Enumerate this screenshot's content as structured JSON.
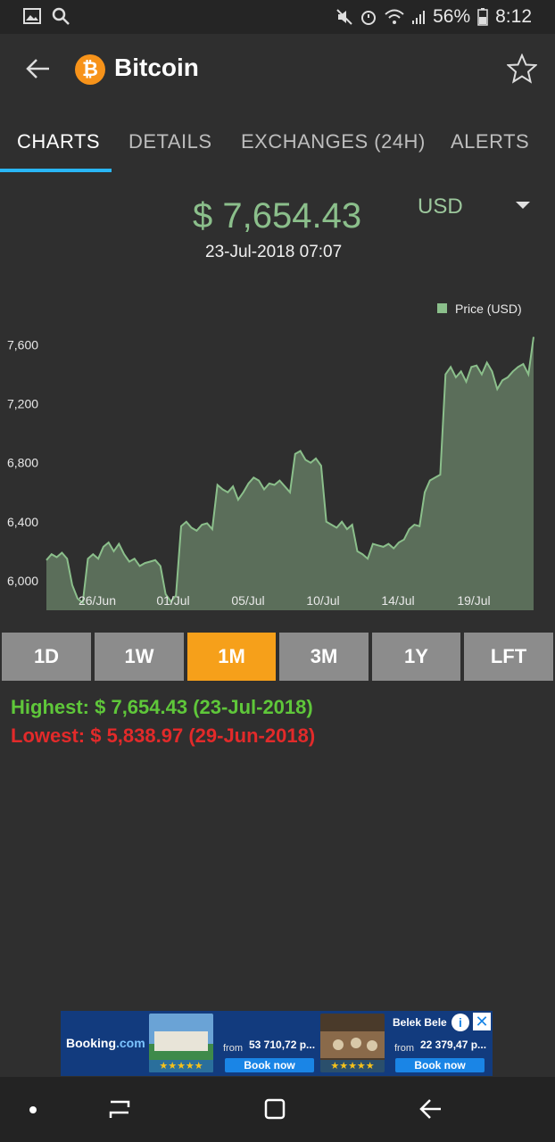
{
  "status_bar": {
    "battery": "56%",
    "time": "8:12"
  },
  "app_bar": {
    "title": "Bitcoin",
    "coin_symbol": "₿"
  },
  "tabs": [
    "CHARTS",
    "DETAILS",
    "EXCHANGES (24H)",
    "ALERTS"
  ],
  "price": {
    "value": "$ 7,654.43",
    "currency": "USD",
    "datetime": "23-Jul-2018 07:07"
  },
  "chart_data": {
    "type": "area",
    "legend": "Price (USD)",
    "legend_position": "top-right",
    "y_ticks": [
      "6,000",
      "6,400",
      "6,800",
      "7,200",
      "7,600"
    ],
    "x_ticks": [
      "26/Jun",
      "01/Jul",
      "05/Jul",
      "10/Jul",
      "14/Jul",
      "19/Jul"
    ],
    "ylim": [
      5800,
      7700
    ],
    "series": [
      {
        "values": [
          6140,
          6180,
          6160,
          6190,
          6150,
          5970,
          5880,
          5850,
          6150,
          6180,
          6150,
          6230,
          6260,
          6200,
          6250,
          6180,
          6130,
          6150,
          6100,
          6120,
          6130,
          6140,
          6100,
          5910,
          5860,
          5900,
          6370,
          6400,
          6360,
          6340,
          6380,
          6390,
          6350,
          6650,
          6620,
          6600,
          6640,
          6550,
          6600,
          6660,
          6700,
          6680,
          6620,
          6660,
          6650,
          6680,
          6640,
          6600,
          6860,
          6880,
          6820,
          6800,
          6830,
          6780,
          6400,
          6380,
          6360,
          6400,
          6350,
          6380,
          6200,
          6180,
          6150,
          6250,
          6240,
          6230,
          6250,
          6220,
          6260,
          6280,
          6350,
          6380,
          6370,
          6600,
          6680,
          6700,
          6720,
          7400,
          7450,
          7380,
          7420,
          7350,
          7450,
          7460,
          7400,
          7480,
          7420,
          7300,
          7360,
          7380,
          7420,
          7450,
          7470,
          7400,
          7654
        ],
        "color": "#8bbf8b",
        "fill": "#5b6e5a"
      }
    ]
  },
  "ranges": [
    {
      "label": "1D",
      "active": false
    },
    {
      "label": "1W",
      "active": false
    },
    {
      "label": "1M",
      "active": true
    },
    {
      "label": "3M",
      "active": false
    },
    {
      "label": "1Y",
      "active": false
    },
    {
      "label": "LFT",
      "active": false
    }
  ],
  "stats": {
    "highest": "Highest: $ 7,654.43 (23-Jul-2018)",
    "lowest": "Lowest: $ 5,838.97 (29-Jun-2018)"
  },
  "ad": {
    "brand": "Booking",
    "brand_suffix": ".com",
    "title": "Belek Bele",
    "from1": "from",
    "price1": "53 710,72 p...",
    "from2": "from",
    "price2": "22 379,47 p...",
    "book1": "Book now",
    "book2": "Book now"
  }
}
